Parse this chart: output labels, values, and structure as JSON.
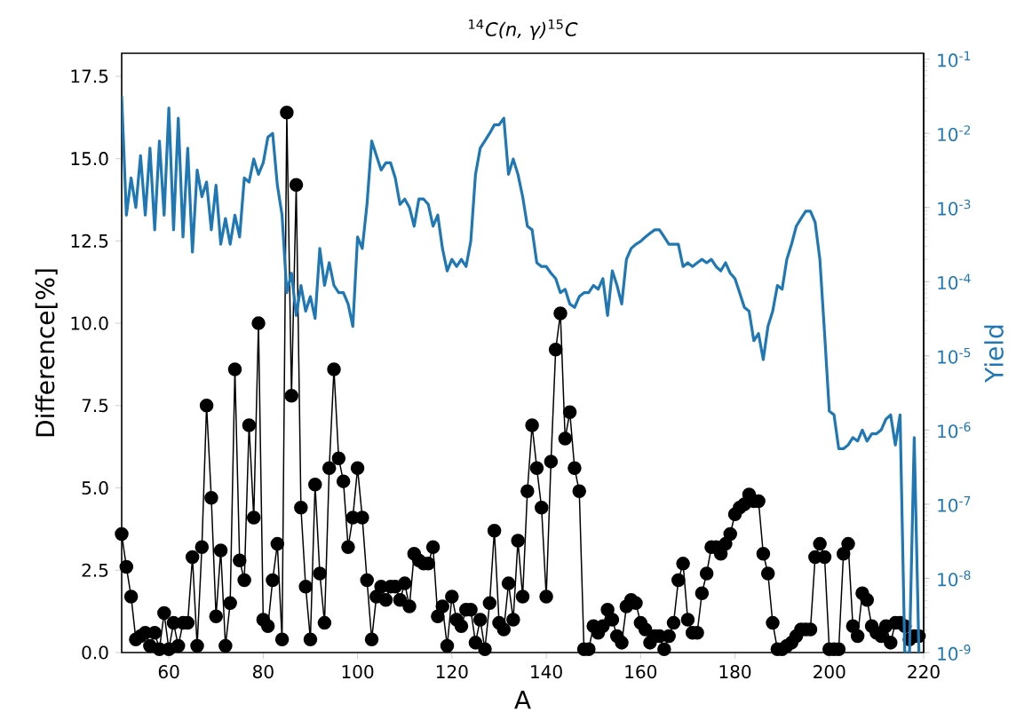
{
  "chart_data": {
    "type": "line",
    "title": "$^{14}$*C(n, γ)*$^{15}$*C*",
    "xlabel": "A",
    "ylabel": "Difference[%]",
    "y2label": "Yield",
    "xlim": [
      50,
      220
    ],
    "xticks": [
      60,
      80,
      100,
      120,
      140,
      160,
      180,
      200,
      220
    ],
    "ylim": [
      0,
      18.2
    ],
    "yticks": [
      {
        "value": 0,
        "label": "0.0"
      },
      {
        "value": 2.5,
        "label": "2.5"
      },
      {
        "value": 5,
        "label": "5.0"
      },
      {
        "value": 7.5,
        "label": "7.5"
      },
      {
        "value": 10,
        "label": "10.0"
      },
      {
        "value": 12.5,
        "label": "12.5"
      },
      {
        "value": 15,
        "label": "15.0"
      },
      {
        "value": 17.5,
        "label": "17.5"
      }
    ],
    "y2lim": [
      1e-09,
      0.12
    ],
    "y2ticks": [
      {
        "value": 1e-09,
        "label": "10$^{-9}$"
      },
      {
        "value": 1e-08,
        "label": "10$^{-8}$"
      },
      {
        "value": 1e-07,
        "label": "10$^{-7}$"
      },
      {
        "value": 1e-06,
        "label": "10$^{-6}$"
      },
      {
        "value": 1e-05,
        "label": "10$^{-5}$"
      },
      {
        "value": 0.0001,
        "label": "10$^{-4}$"
      },
      {
        "value": 0.001,
        "label": "10$^{-3}$"
      },
      {
        "value": 0.01,
        "label": "10$^{-2}$"
      },
      {
        "value": 0.1,
        "label": "10$^{-1}$"
      }
    ],
    "log": "y2",
    "marker": "circle",
    "line_style": "solid",
    "x": [
      50,
      51,
      52,
      53,
      54,
      55,
      56,
      57,
      58,
      59,
      60,
      61,
      62,
      63,
      64,
      65,
      66,
      67,
      68,
      69,
      70,
      71,
      72,
      73,
      74,
      75,
      76,
      77,
      78,
      79,
      80,
      81,
      82,
      83,
      84,
      85,
      86,
      87,
      88,
      89,
      90,
      91,
      92,
      93,
      94,
      95,
      96,
      97,
      98,
      99,
      100,
      101,
      102,
      103,
      104,
      105,
      106,
      107,
      108,
      109,
      110,
      111,
      112,
      113,
      114,
      115,
      116,
      117,
      118,
      119,
      120,
      121,
      122,
      123,
      124,
      125,
      126,
      127,
      128,
      129,
      130,
      131,
      132,
      133,
      134,
      135,
      136,
      137,
      138,
      139,
      140,
      141,
      142,
      143,
      144,
      145,
      146,
      147,
      148,
      149,
      150,
      151,
      152,
      153,
      154,
      155,
      156,
      157,
      158,
      159,
      160,
      161,
      162,
      163,
      164,
      165,
      166,
      167,
      168,
      169,
      170,
      171,
      172,
      173,
      174,
      175,
      176,
      177,
      178,
      179,
      180,
      181,
      182,
      183,
      184,
      185,
      186,
      187,
      188,
      189,
      190,
      191,
      192,
      193,
      194,
      195,
      196,
      197,
      198,
      199,
      200,
      201,
      202,
      203,
      204,
      205,
      206,
      207,
      208,
      209,
      210,
      211,
      212,
      213,
      214,
      215,
      216,
      217,
      218,
      219
    ],
    "series": [
      {
        "color": "#000000",
        "values": [
          3.6,
          2.6,
          1.7,
          0.4,
          0.5,
          0.6,
          0.2,
          0.6,
          0.1,
          1.2,
          0.1,
          0.9,
          0.2,
          0.9,
          0.9,
          2.9,
          0.2,
          3.2,
          7.5,
          4.7,
          1.1,
          3.1,
          0.2,
          1.5,
          8.6,
          2.8,
          2.2,
          6.9,
          4.1,
          10.0,
          1.0,
          0.8,
          2.2,
          3.3,
          0.4,
          16.4,
          7.8,
          14.2,
          4.4,
          2.0,
          0.4,
          5.1,
          2.4,
          0.9,
          5.6,
          8.6,
          5.9,
          5.2,
          3.2,
          4.1,
          5.6,
          4.1,
          2.2,
          0.4,
          1.7,
          2.0,
          1.6,
          2.0,
          2.0,
          1.6,
          2.1,
          1.4,
          3.0,
          2.8,
          2.7,
          2.7,
          3.2,
          1.1,
          1.4,
          0.2,
          1.7,
          1.0,
          0.8,
          1.3,
          1.3,
          0.3,
          1.0,
          0.1,
          1.5,
          3.7,
          0.9,
          0.7,
          2.1,
          1.0,
          3.4,
          1.7,
          4.9,
          6.9,
          5.6,
          4.4,
          1.7,
          5.8,
          9.2,
          10.3,
          6.5,
          7.3,
          5.6,
          4.9,
          0.1,
          0.1,
          0.8,
          0.6,
          0.8,
          1.3,
          1.0,
          0.5,
          0.3,
          1.4,
          1.6,
          1.5,
          0.9,
          0.7,
          0.3,
          0.5,
          0.5,
          0.1,
          0.5,
          0.9,
          2.2,
          2.7,
          1.0,
          0.6,
          0.6,
          1.8,
          2.4,
          3.2,
          3.2,
          3.0,
          3.3,
          3.6,
          4.2,
          4.4,
          4.5,
          4.8,
          4.6,
          4.6,
          3.0,
          2.4,
          0.9,
          0.1,
          0.1,
          0.2,
          0.3,
          0.5,
          0.7,
          0.7,
          0.7,
          2.9,
          3.3,
          2.9,
          0.1,
          0.1,
          0.1,
          3.0,
          3.3,
          0.8,
          0.5,
          1.8,
          1.6,
          0.8,
          0.6,
          0.5,
          0.8,
          0.3,
          0.9,
          0.9,
          0.8,
          0.4,
          0.5,
          0.5
        ]
      },
      {
        "color": "#1f77b4",
        "axis": "y2",
        "marker": "none",
        "values": [
          0.032,
          0.00079,
          0.0025,
          0.001,
          0.005,
          0.00079,
          0.0063,
          0.0005,
          0.0079,
          0.00079,
          0.022,
          0.0005,
          0.016,
          0.0004,
          0.0063,
          0.00025,
          0.0032,
          0.0014,
          0.0022,
          0.0005,
          0.002,
          0.00032,
          0.00071,
          0.00032,
          0.00079,
          0.0004,
          0.0025,
          0.0022,
          0.0045,
          0.0028,
          0.004,
          0.0089,
          0.01,
          0.002,
          0.00079,
          7.1e-05,
          0.00013,
          3.5e-05,
          8.9e-05,
          4e-05,
          6.3e-05,
          3.2e-05,
          0.00028,
          8.9e-05,
          0.00018,
          8.9e-05,
          7.1e-05,
          7.1e-05,
          5e-05,
          2.5e-05,
          0.0004,
          0.00028,
          0.0011,
          0.0079,
          0.005,
          0.0032,
          0.004,
          0.004,
          0.0025,
          0.0011,
          0.0013,
          0.001,
          0.00056,
          0.0013,
          0.0013,
          0.0011,
          0.00056,
          0.00079,
          0.00028,
          0.00014,
          0.0002,
          0.00016,
          0.0002,
          0.00016,
          0.00035,
          0.0028,
          0.0063,
          0.0079,
          0.01,
          0.013,
          0.013,
          0.016,
          0.0028,
          0.0045,
          0.0028,
          0.0014,
          0.00056,
          0.0005,
          0.00018,
          0.00016,
          0.00016,
          0.00013,
          0.00011,
          7.1e-05,
          7.9e-05,
          5e-05,
          4.5e-05,
          6.3e-05,
          7.1e-05,
          7.1e-05,
          8.9e-05,
          7.9e-05,
          0.00011,
          3.5e-05,
          0.00014,
          8.9e-05,
          5e-05,
          0.0002,
          0.00028,
          0.00032,
          0.00035,
          0.0004,
          0.00045,
          0.0005,
          0.0005,
          0.0004,
          0.00032,
          0.00032,
          0.00032,
          0.00016,
          0.00018,
          0.00016,
          0.00018,
          0.0002,
          0.00018,
          0.0002,
          0.00016,
          0.00014,
          0.00018,
          0.00013,
          0.00011,
          7.1e-05,
          4.5e-05,
          4e-05,
          1.6e-05,
          2e-05,
          8.9e-06,
          2.5e-05,
          4e-05,
          8.9e-05,
          7.9e-05,
          0.0002,
          0.00032,
          0.00056,
          0.00071,
          0.00089,
          0.00089,
          0.00063,
          0.0002,
          2e-05,
          1.8e-06,
          1.6e-06,
          5.6e-07,
          5.6e-07,
          6.3e-07,
          7.9e-07,
          7.1e-07,
          1e-06,
          7.1e-07,
          8.9e-07,
          8.9e-07,
          1e-06,
          1.4e-06,
          1.6e-06,
          6.3e-07,
          1.6e-06,
          1e-09,
          1e-09,
          7.9e-07,
          1e-09
        ]
      }
    ]
  }
}
